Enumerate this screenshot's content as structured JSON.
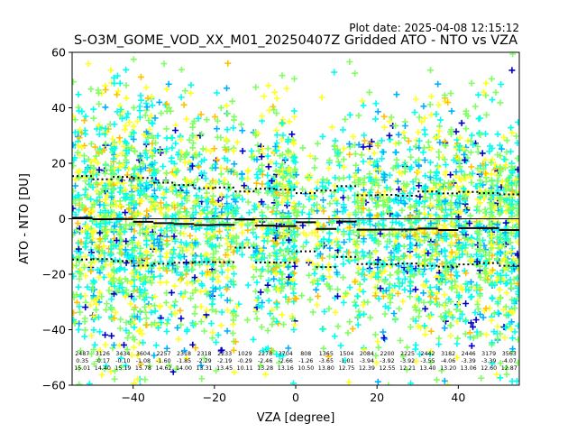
{
  "chart_data": {
    "type": "scatter",
    "title": "S-O3M_GOME_VOD_XX_M01_20250407Z Gridded ATO - NTO vs VZA",
    "subtitle": "Plot date: 2025-04-08 12:15:12",
    "xlabel": "VZA [degree]",
    "ylabel": "ATO - NTO [DU]",
    "xlim": [
      -55,
      55
    ],
    "ylim": [
      -60,
      60
    ],
    "x_ticks": [
      -40,
      -20,
      0,
      20,
      40
    ],
    "y_ticks": [
      -60,
      -40,
      -20,
      0,
      20,
      40,
      60
    ],
    "x_tick_labels": [
      "−40",
      "−20",
      "0",
      "20",
      "40"
    ],
    "y_tick_labels": [
      "−60",
      "−40",
      "−20",
      "0",
      "20",
      "40",
      "60"
    ],
    "grid": false,
    "marker": "+",
    "marker_colors": [
      "#0000cc",
      "#00b0ff",
      "#00ffee",
      "#80ff60",
      "#ffff20",
      "#ffc000"
    ],
    "zero_line": 0,
    "bins": [
      {
        "x": -52.5,
        "count": "2487",
        "mean": "0.35",
        "std": "15.01"
      },
      {
        "x": -47.5,
        "count": "3126",
        "mean": "-0.17",
        "std": "14.40"
      },
      {
        "x": -42.5,
        "count": "3434",
        "mean": "-0.10",
        "std": "15.19"
      },
      {
        "x": -37.5,
        "count": "3604",
        "mean": "-1.08",
        "std": "15.78"
      },
      {
        "x": -32.5,
        "count": "2257",
        "mean": "-1.60",
        "std": "14.62"
      },
      {
        "x": -27.5,
        "count": "2318",
        "mean": "-1.85",
        "std": "14.00"
      },
      {
        "x": -22.5,
        "count": "2318",
        "mean": "-2.29",
        "std": "13.31"
      },
      {
        "x": -17.5,
        "count": "2233",
        "mean": "-2.19",
        "std": "13.45"
      },
      {
        "x": -12.5,
        "count": "1029",
        "mean": "-0.29",
        "std": "10.11"
      },
      {
        "x": -7.5,
        "count": "2278",
        "mean": "-2.46",
        "std": "13.28"
      },
      {
        "x": -2.5,
        "count": "3704",
        "mean": "-2.66",
        "std": "13.16"
      },
      {
        "x": 2.5,
        "count": "808",
        "mean": "-1.26",
        "std": "10.50"
      },
      {
        "x": 7.5,
        "count": "1365",
        "mean": "-3.65",
        "std": "13.80"
      },
      {
        "x": 12.5,
        "count": "1504",
        "mean": "-1.01",
        "std": "12.75"
      },
      {
        "x": 17.5,
        "count": "2084",
        "mean": "-3.94",
        "std": "12.39"
      },
      {
        "x": 22.5,
        "count": "2200",
        "mean": "-3.92",
        "std": "12.55"
      },
      {
        "x": 27.5,
        "count": "2225",
        "mean": "-3.92",
        "std": "12.21"
      },
      {
        "x": 32.5,
        "count": "2442",
        "mean": "-3.55",
        "std": "13.40"
      },
      {
        "x": 37.5,
        "count": "3182",
        "mean": "-4.06",
        "std": "13.20"
      },
      {
        "x": 42.5,
        "count": "2446",
        "mean": "-3.39",
        "std": "13.06"
      },
      {
        "x": 47.5,
        "count": "3179",
        "mean": "-3.39",
        "std": "12.60"
      },
      {
        "x": 52.5,
        "count": "3563",
        "mean": "-4.07",
        "std": "12.87"
      }
    ]
  }
}
